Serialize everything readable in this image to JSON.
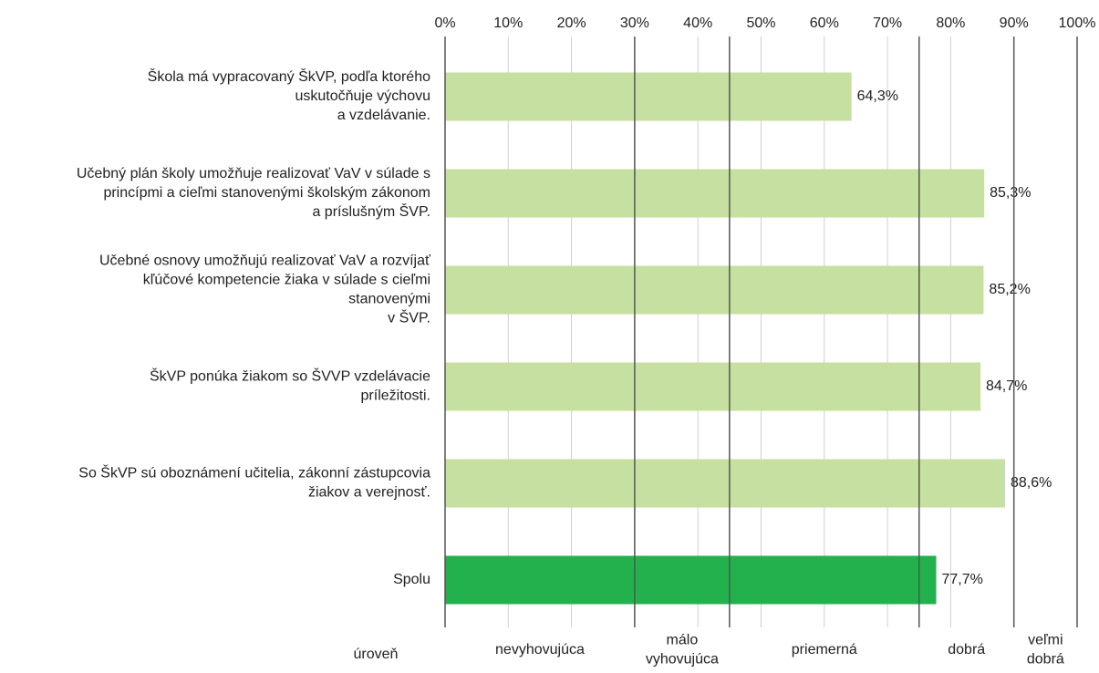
{
  "chart_data": {
    "type": "barh",
    "categories": [
      "Škola má vypracovaný ŠkVP, podľa ktorého\nuskutočňuje výchovu\na vzdelávanie.",
      "Učebný plán školy umožňuje realizovať VaV v súlade s\nprincípmi a cieľmi stanovenými školským zákonom\na príslušným ŠVP.",
      "Učebné osnovy umožňujú realizovať VaV a rozvíjať\nkľúčové kompetencie žiaka v súlade s cieľmi\nstanovenými\nv ŠVP.",
      "ŠkVP ponúka žiakom so ŠVVP vzdelávacie\npríležitosti.",
      "So ŠkVP sú oboznámení učitelia, zákonní zástupcovia\nžiakov a verejnosť.",
      "Spolu"
    ],
    "values": [
      64.3,
      85.3,
      85.2,
      84.7,
      88.6,
      77.7
    ],
    "value_labels": [
      "64,3%",
      "85,3%",
      "85,2%",
      "84,7%",
      "88,6%",
      "77,7%"
    ],
    "colors": [
      "#c5e0a0",
      "#c5e0a0",
      "#c5e0a0",
      "#c5e0a0",
      "#c5e0a0",
      "#22b14c"
    ],
    "xlim": [
      0,
      100
    ],
    "xticks": [
      {
        "value": 0,
        "label": "0%"
      },
      {
        "value": 10,
        "label": "10%"
      },
      {
        "value": 20,
        "label": "20%"
      },
      {
        "value": 30,
        "label": "30%"
      },
      {
        "value": 40,
        "label": "40%"
      },
      {
        "value": 50,
        "label": "50%"
      },
      {
        "value": 60,
        "label": "60%"
      },
      {
        "value": 70,
        "label": "70%"
      },
      {
        "value": 80,
        "label": "80%"
      },
      {
        "value": 90,
        "label": "90%"
      },
      {
        "value": 100,
        "label": "100%"
      }
    ],
    "grid": true,
    "level_title": "úroveň",
    "level_bounds": [
      0,
      30,
      45,
      75,
      90,
      100
    ],
    "levels": [
      "nevyhovujúca",
      "málo\nvyhovujúca",
      "priemerná",
      "dobrá",
      "veľmi\ndobrá"
    ]
  }
}
